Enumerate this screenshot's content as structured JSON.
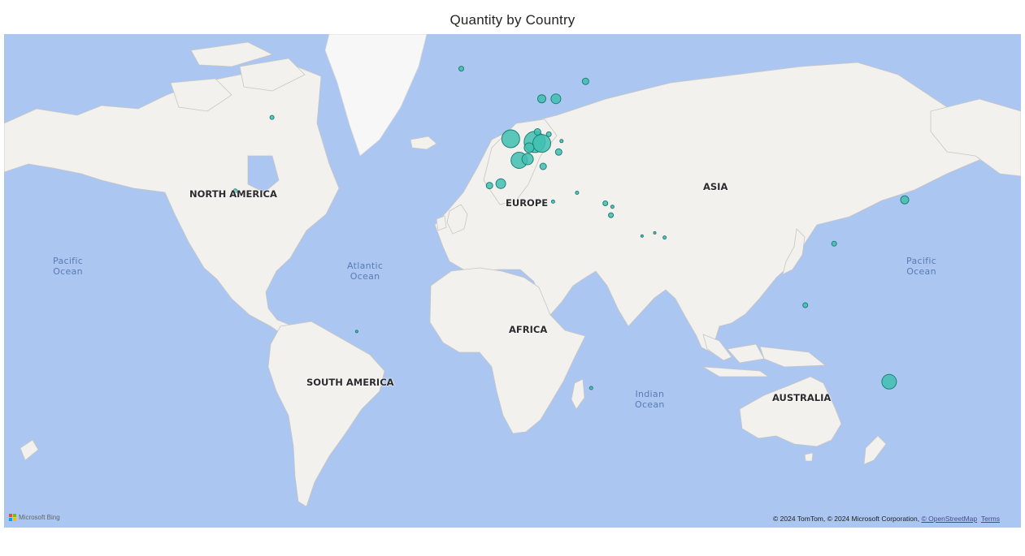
{
  "title": "Quantity by Country",
  "labels": {
    "north_america": "NORTH AMERICA",
    "south_america": "SOUTH AMERICA",
    "europe": "EUROPE",
    "africa": "AFRICA",
    "asia": "ASIA",
    "australia": "AUSTRALIA",
    "pacific_left_1": "Pacific",
    "pacific_left_2": "Ocean",
    "atlantic_1": "Atlantic",
    "atlantic_2": "Ocean",
    "indian_1": "Indian",
    "indian_2": "Ocean",
    "pacific_right_1": "Pacific",
    "pacific_right_2": "Ocean"
  },
  "logo": {
    "text": "Microsoft Bing"
  },
  "attribution": {
    "text": "© 2024 TomTom, © 2024 Microsoft Corporation, ",
    "osm_link": "© OpenStreetMap",
    "terms_link": "Terms"
  },
  "colors": {
    "bubble_fill": "#3fbfb0",
    "bubble_stroke": "#1f7f77",
    "ocean": "#abc6f0",
    "land": "#f2f1ee"
  },
  "chart_data": {
    "type": "bubble-map",
    "title": "Quantity by Country",
    "measure": "Quantity",
    "category": "Country",
    "points": [
      {
        "lat": 51.5,
        "lon": -0.5,
        "size": 11
      },
      {
        "lat": 50.8,
        "lon": 8.0,
        "size": 13
      },
      {
        "lat": 50.5,
        "lon": 10.5,
        "size": 11
      },
      {
        "lat": 49.5,
        "lon": 6.0,
        "size": 6
      },
      {
        "lat": 46.5,
        "lon": 2.5,
        "size": 10
      },
      {
        "lat": 46.8,
        "lon": 5.5,
        "size": 7
      },
      {
        "lat": 53.0,
        "lon": 9.0,
        "size": 4
      },
      {
        "lat": 52.5,
        "lon": 13.0,
        "size": 3
      },
      {
        "lat": 48.5,
        "lon": 16.5,
        "size": 4
      },
      {
        "lat": 51.0,
        "lon": 17.5,
        "size": 2
      },
      {
        "lat": 45.0,
        "lon": 11.0,
        "size": 4
      },
      {
        "lat": 40.5,
        "lon": -4.0,
        "size": 6
      },
      {
        "lat": 40.0,
        "lon": -8.0,
        "size": 4
      },
      {
        "lat": 59.5,
        "lon": 15.5,
        "size": 6
      },
      {
        "lat": 59.5,
        "lon": 10.5,
        "size": 5
      },
      {
        "lat": 62.5,
        "lon": 26.0,
        "size": 4
      },
      {
        "lat": 64.5,
        "lon": -18.0,
        "size": 3
      },
      {
        "lat": 38.0,
        "lon": 23.0,
        "size": 2
      },
      {
        "lat": 35.5,
        "lon": 14.5,
        "size": 2
      },
      {
        "lat": 35.0,
        "lon": 33.0,
        "size": 3
      },
      {
        "lat": 34.0,
        "lon": 35.5,
        "size": 2
      },
      {
        "lat": 31.5,
        "lon": 35.0,
        "size": 3
      },
      {
        "lat": 25.0,
        "lon": 46.0,
        "size": 1.5
      },
      {
        "lat": 26.0,
        "lon": 50.5,
        "size": 1.5
      },
      {
        "lat": 24.5,
        "lon": 54.0,
        "size": 2
      },
      {
        "lat": 22.5,
        "lon": 114.0,
        "size": 3
      },
      {
        "lat": 36.0,
        "lon": 139.0,
        "size": 5
      },
      {
        "lat": 1.3,
        "lon": 103.8,
        "size": 3
      },
      {
        "lat": -25.0,
        "lon": 133.5,
        "size": 9
      },
      {
        "lat": -27.0,
        "lon": 28.0,
        "size": 2
      },
      {
        "lat": -8.0,
        "lon": -55.0,
        "size": 1.5
      },
      {
        "lat": 56.0,
        "lon": -85.0,
        "size": 2.5
      },
      {
        "lat": 38.5,
        "lon": -98.0,
        "size": 2.5
      }
    ]
  }
}
